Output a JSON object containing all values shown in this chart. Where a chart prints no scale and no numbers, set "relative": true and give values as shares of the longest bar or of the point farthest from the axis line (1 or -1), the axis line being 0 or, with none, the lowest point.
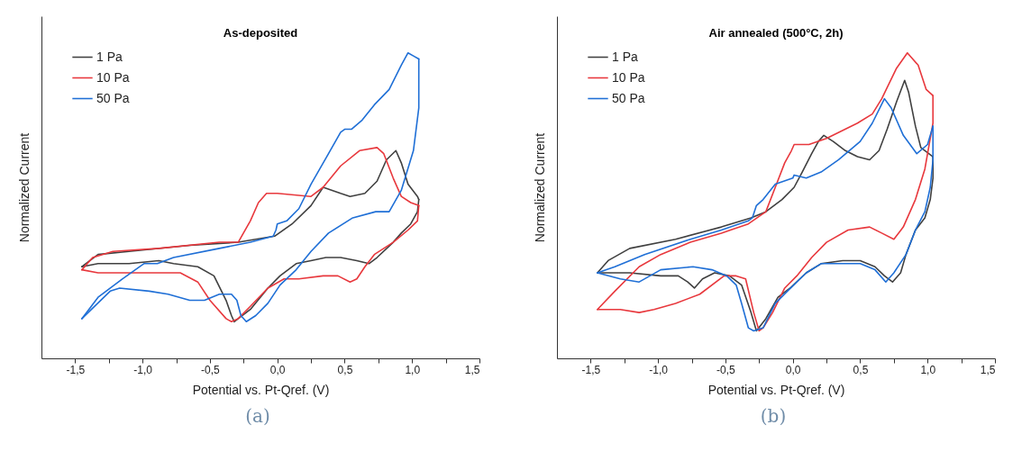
{
  "chart_data": [
    {
      "type": "line",
      "title": "As-deposited",
      "xlabel": "Potential vs. Pt-Qref. (V)",
      "ylabel": "Normalized Current",
      "relative": true,
      "legend": "top left",
      "grid": false,
      "annotations": [
        "(a)"
      ],
      "xlim": [
        -1.75,
        1.5
      ],
      "xticks": [
        {
          "value": -1.5,
          "label": "-1,5"
        },
        {
          "value": -1.25,
          "label": null
        },
        {
          "value": -1.0,
          "label": "-1,0"
        },
        {
          "value": -0.75,
          "label": null
        },
        {
          "value": -0.5,
          "label": "-0,5"
        },
        {
          "value": -0.25,
          "label": null
        },
        {
          "value": 0,
          "label": "0,0"
        },
        {
          "value": 0.25,
          "label": null
        },
        {
          "value": 0.5,
          "label": "0,5"
        },
        {
          "value": 0.75,
          "label": null
        },
        {
          "value": 1.0,
          "label": "1,0"
        },
        {
          "value": 1.25,
          "label": null
        },
        {
          "value": 1.5,
          "label": "1,5"
        }
      ],
      "series": [
        {
          "name": "1 Pa",
          "color": "#404040",
          "x": [
            -1.45,
            -1.33,
            -1.1,
            -0.65,
            -0.29,
            -0.02,
            0.11,
            0.25,
            0.34,
            0.47,
            0.54,
            0.65,
            0.74,
            0.81,
            0.88,
            0.92,
            0.97,
            1.04,
            1.05
          ],
          "values": [
            0.3,
            0.34,
            0.35,
            0.37,
            0.38,
            0.4,
            0.44,
            0.5,
            0.56,
            0.54,
            0.53,
            0.54,
            0.58,
            0.65,
            0.68,
            0.64,
            0.57,
            0.53,
            0.52
          ]
        },
        {
          "color": "#404040",
          "x": [
            1.05,
            1.04,
            0.99,
            0.92,
            0.86,
            0.74,
            0.68,
            0.59,
            0.47,
            0.36,
            0.25,
            0.14,
            0.02,
            -0.07,
            -0.2,
            -0.29,
            -0.32,
            -0.34,
            -0.38,
            -0.47,
            -0.59,
            -0.77,
            -0.88,
            -1.1,
            -1.33,
            -1.45
          ],
          "values": [
            0.52,
            0.48,
            0.44,
            0.41,
            0.38,
            0.33,
            0.31,
            0.32,
            0.33,
            0.33,
            0.32,
            0.31,
            0.27,
            0.23,
            0.16,
            0.13,
            0.12,
            0.14,
            0.19,
            0.27,
            0.3,
            0.31,
            0.32,
            0.31,
            0.31,
            0.3
          ]
        },
        {
          "name": "10 Pa",
          "color": "#e8383d",
          "x": [
            -1.45,
            -1.37,
            -1.22,
            -0.88,
            -0.43,
            -0.29,
            -0.2,
            -0.14,
            -0.08,
            0.0,
            0.25,
            0.34,
            0.47,
            0.61,
            0.74,
            0.79,
            0.86,
            0.92,
            0.99,
            1.05
          ],
          "values": [
            0.29,
            0.33,
            0.35,
            0.36,
            0.38,
            0.38,
            0.45,
            0.51,
            0.54,
            0.54,
            0.53,
            0.56,
            0.63,
            0.68,
            0.69,
            0.67,
            0.59,
            0.53,
            0.51,
            0.5
          ]
        },
        {
          "color": "#e8383d",
          "x": [
            1.05,
            1.04,
            0.97,
            0.86,
            0.72,
            0.65,
            0.59,
            0.54,
            0.45,
            0.34,
            0.16,
            0.05,
            -0.07,
            -0.2,
            -0.29,
            -0.34,
            -0.38,
            -0.5,
            -0.59,
            -0.72,
            -0.88,
            -1.1,
            -1.33,
            -1.45
          ],
          "values": [
            0.5,
            0.45,
            0.42,
            0.38,
            0.34,
            0.3,
            0.26,
            0.25,
            0.27,
            0.27,
            0.26,
            0.26,
            0.23,
            0.17,
            0.13,
            0.12,
            0.13,
            0.19,
            0.25,
            0.28,
            0.28,
            0.28,
            0.28,
            0.29
          ]
        },
        {
          "name": "50 Pa",
          "color": "#1f6fd6",
          "x": [
            -1.45,
            -1.33,
            -1.15,
            -0.99,
            -0.89,
            -0.77,
            -0.43,
            -0.2,
            -0.03,
            -0.01,
            0.0,
            0.07,
            0.16,
            0.25,
            0.38,
            0.47,
            0.5,
            0.55,
            0.63,
            0.72,
            0.83,
            0.92,
            0.97,
            1.01,
            1.05
          ],
          "values": [
            0.13,
            0.2,
            0.26,
            0.31,
            0.31,
            0.33,
            0.36,
            0.38,
            0.4,
            0.42,
            0.44,
            0.45,
            0.49,
            0.57,
            0.67,
            0.74,
            0.75,
            0.75,
            0.78,
            0.83,
            0.88,
            0.96,
            1.0,
            0.99,
            0.98
          ]
        },
        {
          "color": "#1f6fd6",
          "x": [
            1.05,
            1.05,
            1.01,
            0.92,
            0.83,
            0.73,
            0.56,
            0.38,
            0.25,
            0.14,
            0.02,
            -0.07,
            -0.16,
            -0.23,
            -0.27,
            -0.3,
            -0.34,
            -0.43,
            -0.54,
            -0.65,
            -0.81,
            -0.95,
            -1.17,
            -1.24,
            -1.45
          ],
          "values": [
            0.98,
            0.82,
            0.68,
            0.55,
            0.48,
            0.48,
            0.46,
            0.41,
            0.35,
            0.29,
            0.24,
            0.18,
            0.14,
            0.12,
            0.14,
            0.19,
            0.21,
            0.21,
            0.19,
            0.19,
            0.21,
            0.22,
            0.23,
            0.22,
            0.13
          ]
        }
      ]
    },
    {
      "type": "line",
      "title": "Air annealed (500°C, 2h)",
      "xlabel": "Potential vs. Pt-Qref. (V)",
      "ylabel": "Normalized Current",
      "relative": true,
      "legend": "top left",
      "grid": false,
      "annotations": [
        "(b)"
      ],
      "xlim": [
        -1.75,
        1.5
      ],
      "xticks": [
        {
          "value": -1.5,
          "label": "-1,5"
        },
        {
          "value": -1.25,
          "label": null
        },
        {
          "value": -1.0,
          "label": "-1,0"
        },
        {
          "value": -0.75,
          "label": null
        },
        {
          "value": -0.5,
          "label": "-0,5"
        },
        {
          "value": -0.25,
          "label": null
        },
        {
          "value": 0,
          "label": "0,0"
        },
        {
          "value": 0.25,
          "label": null
        },
        {
          "value": 0.5,
          "label": "0,5"
        },
        {
          "value": 0.75,
          "label": null
        },
        {
          "value": 1.0,
          "label": "1,0"
        },
        {
          "value": 1.25,
          "label": null
        },
        {
          "value": 1.5,
          "label": "1,5"
        }
      ],
      "series": [
        {
          "name": "1 Pa",
          "color": "#404040",
          "x": [
            -1.45,
            -1.37,
            -1.21,
            -0.87,
            -0.53,
            -0.31,
            -0.2,
            -0.08,
            0.01,
            0.07,
            0.14,
            0.19,
            0.23,
            0.3,
            0.39,
            0.48,
            0.57,
            0.64,
            0.7,
            0.77,
            0.83,
            0.86,
            0.91,
            0.95,
            1.04
          ],
          "values": [
            0.28,
            0.32,
            0.36,
            0.39,
            0.43,
            0.46,
            0.48,
            0.52,
            0.56,
            0.61,
            0.67,
            0.71,
            0.73,
            0.71,
            0.68,
            0.66,
            0.65,
            0.68,
            0.75,
            0.84,
            0.91,
            0.87,
            0.76,
            0.69,
            0.66
          ]
        },
        {
          "color": "#404040",
          "x": [
            1.04,
            1.04,
            1.02,
            0.98,
            0.91,
            0.84,
            0.8,
            0.74,
            0.68,
            0.61,
            0.5,
            0.37,
            0.21,
            0.1,
            -0.02,
            -0.11,
            -0.2,
            -0.27,
            -0.31,
            -0.38,
            -0.47,
            -0.58,
            -0.67,
            -0.73,
            -0.78,
            -0.85,
            -0.98,
            -1.21,
            -1.45
          ],
          "values": [
            0.66,
            0.59,
            0.52,
            0.46,
            0.42,
            0.34,
            0.28,
            0.25,
            0.27,
            0.3,
            0.32,
            0.32,
            0.31,
            0.28,
            0.23,
            0.2,
            0.13,
            0.09,
            0.15,
            0.24,
            0.27,
            0.28,
            0.26,
            0.23,
            0.25,
            0.27,
            0.27,
            0.28,
            0.28
          ]
        },
        {
          "name": "10 Pa",
          "color": "#e8383d",
          "x": [
            -1.45,
            -1.32,
            -1.14,
            -0.98,
            -0.76,
            -0.53,
            -0.33,
            -0.2,
            -0.13,
            -0.06,
            -0.01,
            0.01,
            0.12,
            0.25,
            0.48,
            0.59,
            0.66,
            0.77,
            0.85,
            0.93,
            0.99,
            1.04
          ],
          "values": [
            0.16,
            0.22,
            0.3,
            0.34,
            0.38,
            0.41,
            0.44,
            0.48,
            0.56,
            0.64,
            0.68,
            0.7,
            0.7,
            0.72,
            0.77,
            0.8,
            0.85,
            0.95,
            1.0,
            0.96,
            0.88,
            0.86
          ]
        },
        {
          "color": "#e8383d",
          "x": [
            1.04,
            1.04,
            0.98,
            0.91,
            0.82,
            0.75,
            0.66,
            0.57,
            0.41,
            0.25,
            0.14,
            0.03,
            -0.06,
            -0.15,
            -0.22,
            -0.25,
            -0.29,
            -0.35,
            -0.42,
            -0.51,
            -0.69,
            -0.87,
            -1.03,
            -1.14,
            -1.28,
            -1.45
          ],
          "values": [
            0.86,
            0.77,
            0.62,
            0.52,
            0.43,
            0.39,
            0.41,
            0.43,
            0.42,
            0.38,
            0.33,
            0.27,
            0.23,
            0.15,
            0.1,
            0.09,
            0.15,
            0.26,
            0.27,
            0.27,
            0.21,
            0.18,
            0.16,
            0.15,
            0.16,
            0.16
          ]
        },
        {
          "name": "50 Pa",
          "color": "#1f6fd6",
          "x": [
            -1.45,
            -1.32,
            -1.1,
            -0.76,
            -0.53,
            -0.33,
            -0.3,
            -0.27,
            -0.22,
            -0.13,
            0.0,
            0.01,
            0.1,
            0.21,
            0.34,
            0.5,
            0.59,
            0.68,
            0.73,
            0.82,
            0.92,
            1.0,
            1.04
          ],
          "values": [
            0.28,
            0.3,
            0.34,
            0.39,
            0.42,
            0.45,
            0.46,
            0.5,
            0.52,
            0.57,
            0.59,
            0.6,
            0.59,
            0.61,
            0.65,
            0.71,
            0.77,
            0.85,
            0.82,
            0.73,
            0.67,
            0.7,
            0.76
          ]
        },
        {
          "color": "#1f6fd6",
          "x": [
            1.04,
            1.04,
            1.02,
            0.98,
            0.91,
            0.84,
            0.75,
            0.69,
            0.61,
            0.5,
            0.32,
            0.21,
            0.1,
            -0.04,
            -0.13,
            -0.22,
            -0.29,
            -0.33,
            -0.38,
            -0.42,
            -0.49,
            -0.6,
            -0.74,
            -0.98,
            -1.14,
            -1.28,
            -1.45
          ],
          "values": [
            0.76,
            0.65,
            0.56,
            0.48,
            0.42,
            0.34,
            0.28,
            0.25,
            0.29,
            0.31,
            0.31,
            0.31,
            0.28,
            0.22,
            0.18,
            0.1,
            0.09,
            0.1,
            0.18,
            0.24,
            0.27,
            0.29,
            0.3,
            0.29,
            0.25,
            0.26,
            0.28
          ]
        }
      ]
    }
  ]
}
